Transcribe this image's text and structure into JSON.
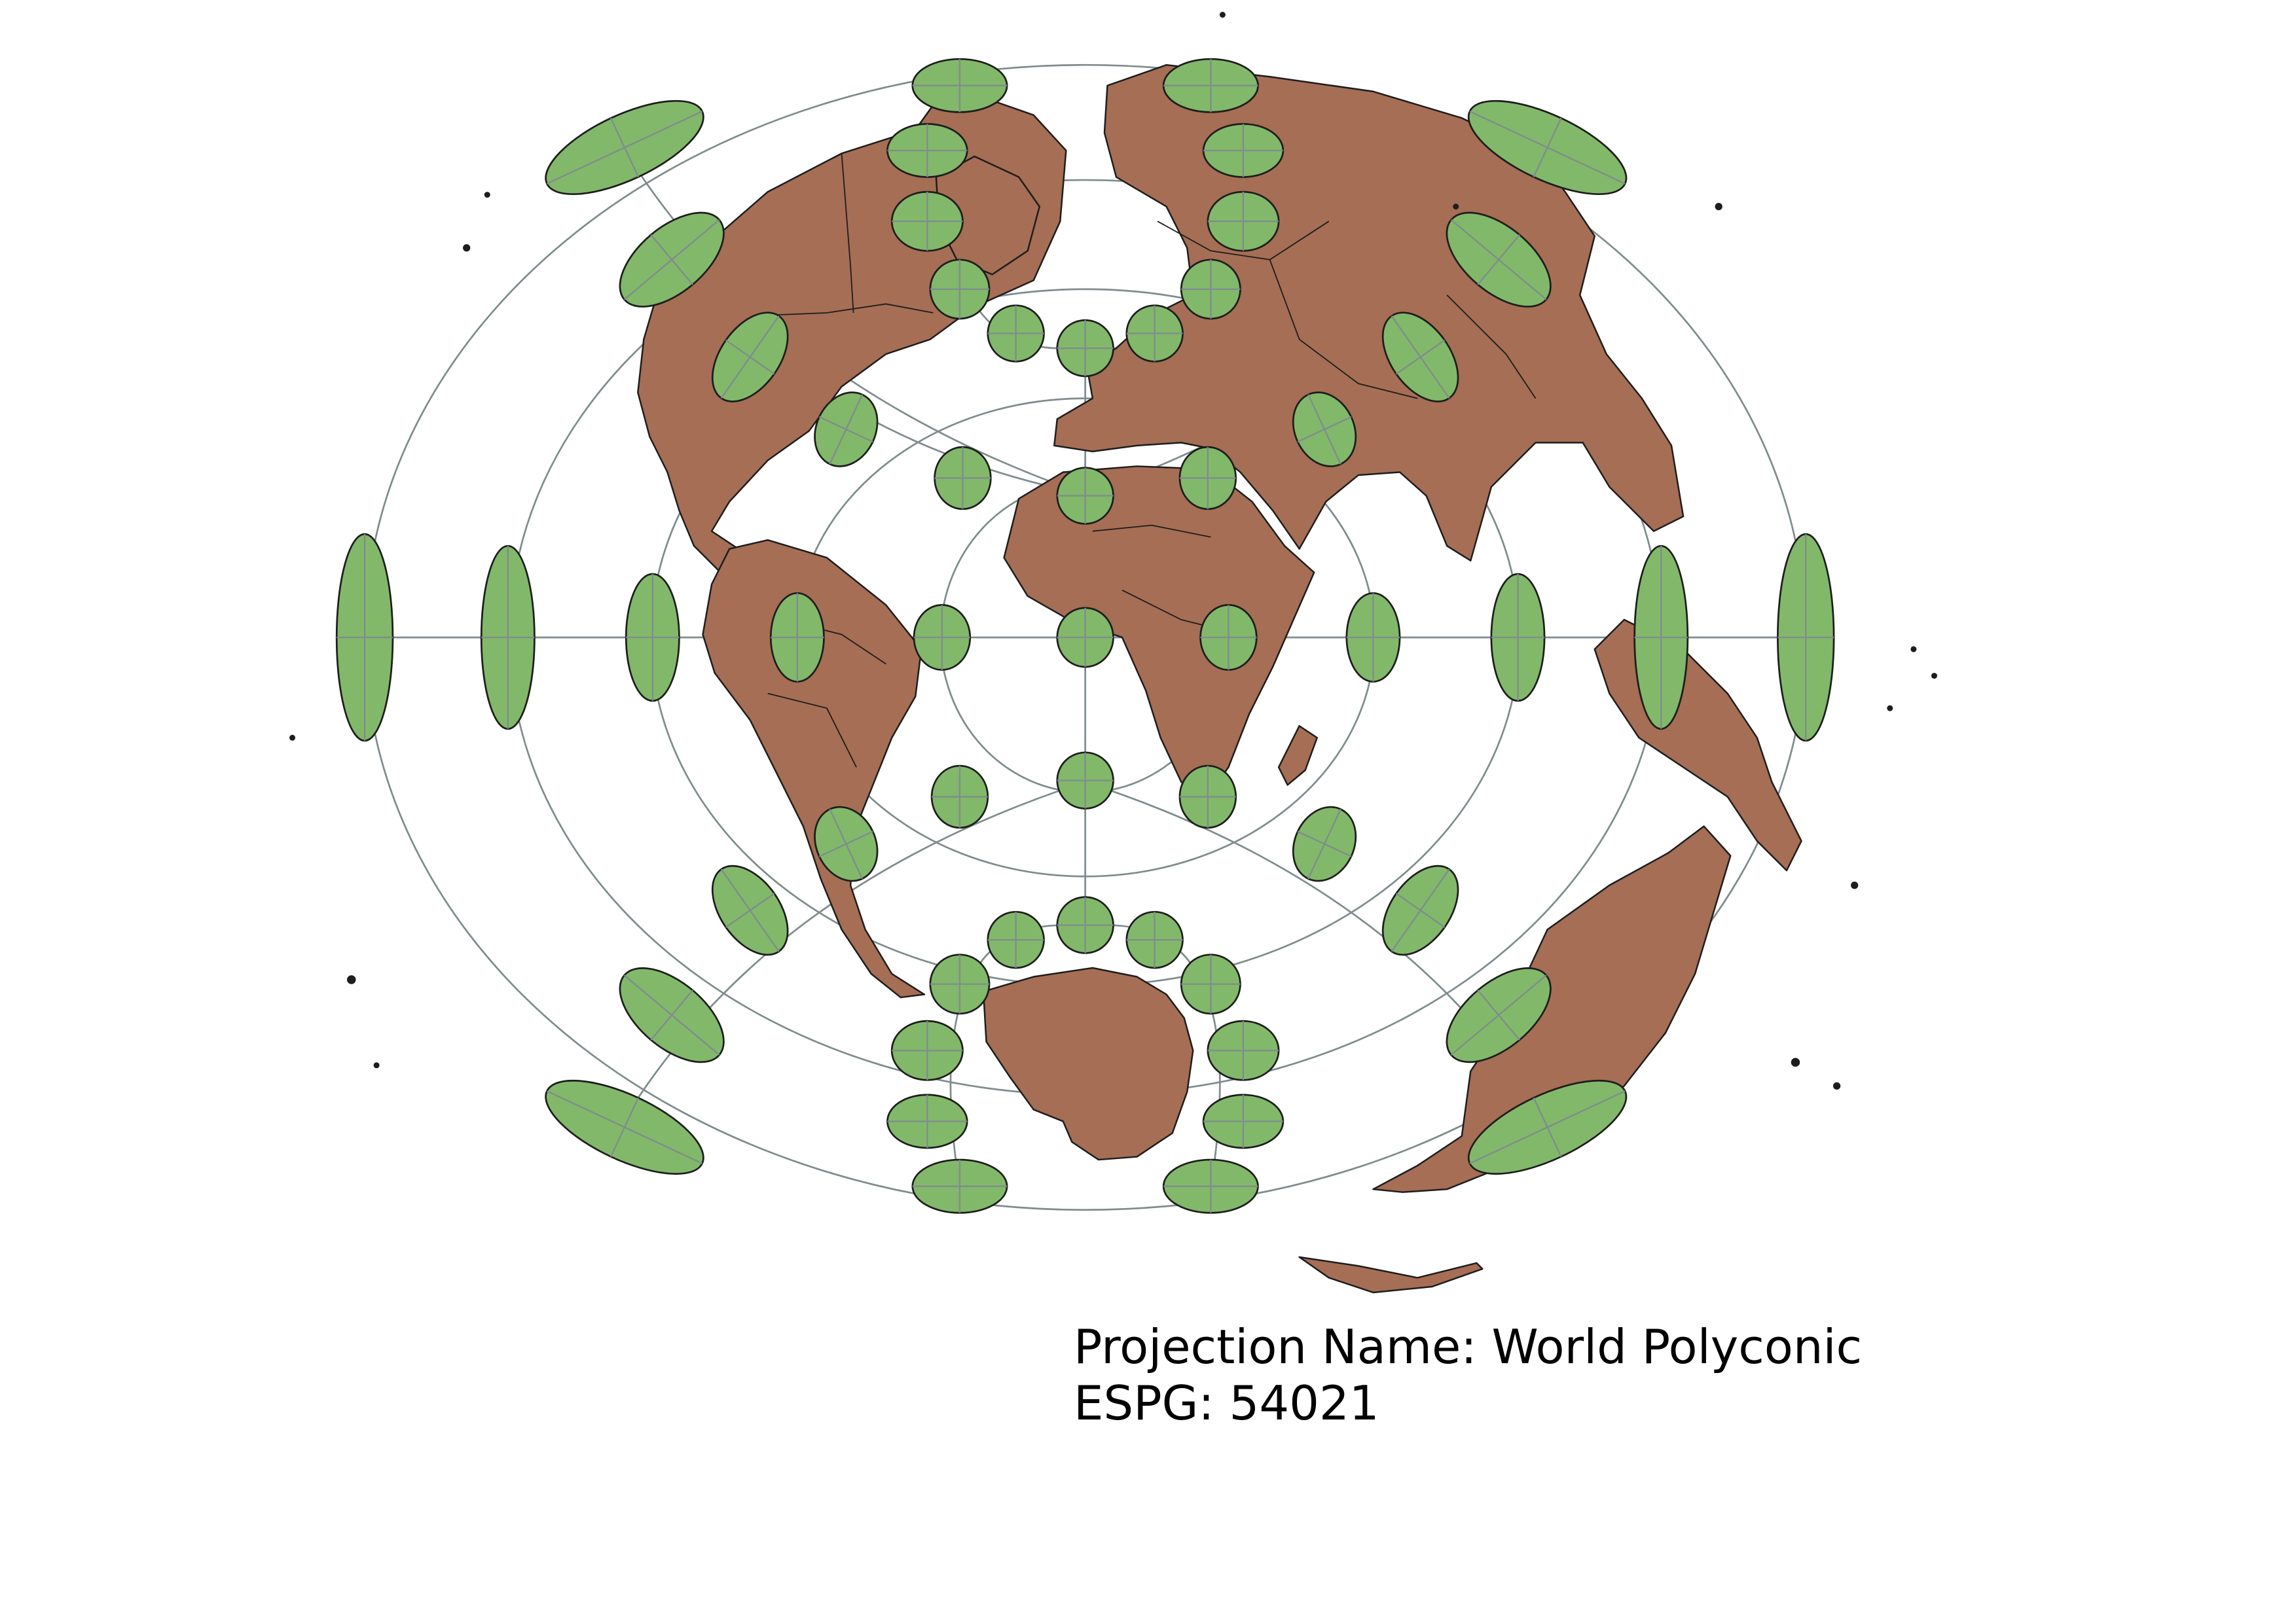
{
  "map": {
    "projection_label": "Projection Name: World Polyconic",
    "epsg_label": "ESPG: 54021",
    "colors": {
      "land": "#a56e55",
      "tissot": "#82b86a",
      "graticule": "#7f8c8d",
      "outline": "#1d1d1d",
      "background": "#ffffff"
    }
  }
}
